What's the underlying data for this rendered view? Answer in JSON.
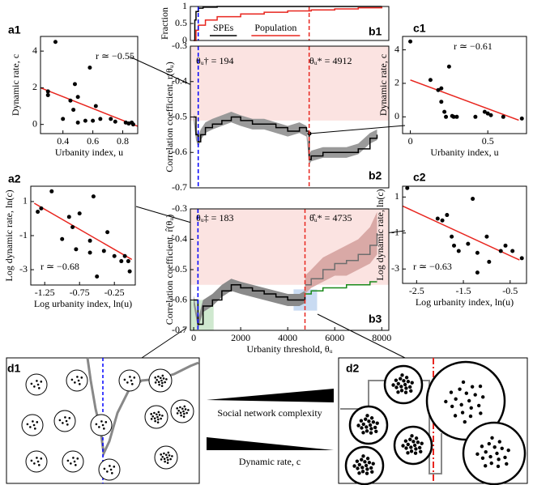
{
  "chart_data": [
    {
      "type": "scatter",
      "panel": "a1",
      "xlabel": "Urbanity index, u",
      "ylabel": "Dynamic rate, c",
      "xlim": [
        0.25,
        0.9
      ],
      "ylim": [
        -0.5,
        4.8
      ],
      "xticks": [
        0.4,
        0.6,
        0.8
      ],
      "yticks": [
        0,
        2,
        4
      ],
      "points": {
        "color": "#000000",
        "x": [
          0.3,
          0.3,
          0.35,
          0.4,
          0.45,
          0.47,
          0.48,
          0.5,
          0.5,
          0.55,
          0.58,
          0.6,
          0.62,
          0.65,
          0.72,
          0.75,
          0.82,
          0.84,
          0.86,
          0.87
        ],
        "values": [
          1.6,
          1.8,
          4.5,
          0.3,
          1.3,
          0.8,
          2.2,
          1.5,
          0.1,
          0.2,
          3.1,
          0.2,
          1.0,
          0.3,
          0.3,
          0.15,
          0.1,
          0.05,
          0.1,
          0.0
        ]
      },
      "fit": {
        "color": "#e8261f",
        "x": [
          0.25,
          0.9
        ],
        "values": [
          2.0,
          -0.1
        ]
      },
      "annotations": [
        "r ≃ −0.55"
      ]
    },
    {
      "type": "scatter",
      "panel": "a2",
      "xlabel": "Log urbanity index, ln(u)",
      "ylabel": "Log dynamic rate, ln(c)",
      "xlim": [
        -1.45,
        0.05
      ],
      "ylim": [
        -3.9,
        1.9
      ],
      "xticks": [
        -1.25,
        -0.75,
        -0.25
      ],
      "yticks": [
        1,
        -1,
        -3
      ],
      "points": {
        "color": "#000000",
        "x": [
          -1.35,
          -1.3,
          -1.15,
          -1.0,
          -0.9,
          -0.85,
          -0.8,
          -0.75,
          -0.6,
          -0.6,
          -0.55,
          -0.5,
          -0.4,
          -0.35,
          -0.25,
          -0.15,
          -0.1,
          -0.05,
          -0.03
        ],
        "values": [
          0.4,
          0.6,
          1.6,
          -1.2,
          0.1,
          -0.5,
          -1.8,
          0.3,
          -2.0,
          -1.3,
          1.3,
          -3.4,
          -1.9,
          -0.8,
          -2.2,
          -2.5,
          -2.2,
          -2.5,
          -3.1
        ]
      },
      "fit": {
        "color": "#e8261f",
        "x": [
          -1.4,
          0
        ],
        "values": [
          0.9,
          -2.4
        ]
      },
      "annotations": [
        "r ≃ −0.68"
      ]
    },
    {
      "type": "line",
      "panel": "b1",
      "ylabel": "Fraction",
      "xlim": [
        -140,
        8300
      ],
      "ylim": [
        0,
        1
      ],
      "yticks": [
        0,
        0.5,
        1
      ],
      "series": [
        {
          "name": "SPEs",
          "color": "#000000",
          "x": [
            0,
            50,
            100,
            200,
            400,
            1000,
            3000,
            8000
          ],
          "values": [
            0,
            0.6,
            0.85,
            0.95,
            0.98,
            1,
            1,
            1
          ]
        },
        {
          "name": "Population",
          "color": "#e8261f",
          "x": [
            0,
            100,
            200,
            500,
            1000,
            2000,
            3000,
            4000,
            5000,
            6000,
            7000,
            8000
          ],
          "values": [
            0,
            0.3,
            0.45,
            0.6,
            0.7,
            0.78,
            0.83,
            0.87,
            0.9,
            0.93,
            0.96,
            1
          ]
        }
      ],
      "vlines": [
        {
          "x": 194,
          "color": "#0000ff"
        },
        {
          "x": 4912,
          "color": "#e8261f"
        }
      ]
    },
    {
      "type": "line",
      "panel": "b2",
      "ylabel": "Correlation coefficient, r(θᵤ)",
      "xlim": [
        -140,
        8300
      ],
      "ylim": [
        -0.7,
        -0.3
      ],
      "yticks": [
        -0.3,
        -0.4,
        -0.5,
        -0.6,
        -0.7
      ],
      "regions": [
        {
          "ylim": [
            -0.3,
            -0.51
          ],
          "color": "#fbe3e1"
        }
      ],
      "series": [
        {
          "color": "#000000",
          "band_color": "#9a9a9a",
          "x": [
            0,
            100,
            194,
            300,
            500,
            800,
            1200,
            1600,
            2000,
            2500,
            3000,
            3500,
            4000,
            4500,
            4800,
            4912,
            5000,
            5500,
            6000,
            6500,
            7000,
            7500,
            7800
          ],
          "values": [
            -0.5,
            -0.55,
            -0.57,
            -0.55,
            -0.53,
            -0.52,
            -0.51,
            -0.5,
            -0.51,
            -0.52,
            -0.52,
            -0.53,
            -0.54,
            -0.53,
            -0.54,
            -0.62,
            -0.61,
            -0.6,
            -0.6,
            -0.6,
            -0.59,
            -0.56,
            -0.55
          ],
          "lower": [
            -0.51,
            -0.565,
            -0.585,
            -0.565,
            -0.545,
            -0.535,
            -0.525,
            -0.515,
            -0.525,
            -0.535,
            -0.535,
            -0.545,
            -0.555,
            -0.545,
            -0.555,
            -0.635,
            -0.625,
            -0.615,
            -0.615,
            -0.615,
            -0.605,
            -0.575,
            -0.565
          ],
          "upper": [
            -0.49,
            -0.535,
            -0.555,
            -0.535,
            -0.515,
            -0.505,
            -0.495,
            -0.485,
            -0.495,
            -0.505,
            -0.505,
            -0.515,
            -0.525,
            -0.515,
            -0.525,
            -0.605,
            -0.595,
            -0.585,
            -0.585,
            -0.585,
            -0.575,
            -0.545,
            -0.535
          ]
        }
      ],
      "vlines": [
        {
          "x": 194,
          "color": "#0000ff"
        },
        {
          "x": 4912,
          "color": "#e8261f"
        }
      ],
      "annotations": [
        "θᵤ† = 194",
        "θᵤ* = 4912"
      ]
    },
    {
      "type": "line",
      "panel": "b3",
      "ylabel": "Correlation coefficient, r̂(θᵤ)",
      "xlabel": "Urbanity threshold, θᵤ",
      "xlim": [
        -140,
        8300
      ],
      "ylim": [
        -0.7,
        -0.3
      ],
      "yticks": [
        -0.3,
        -0.4,
        -0.5,
        -0.6,
        -0.7
      ],
      "xticks": [
        0,
        2000,
        4000,
        6000,
        8000
      ],
      "regions": [
        {
          "ylim": [
            -0.3,
            -0.55
          ],
          "color": "#fbe3e1"
        },
        {
          "xlim": [
            -140,
            850
          ],
          "ylim": [
            -0.6,
            -0.7
          ],
          "color": "#cfe8cf"
        },
        {
          "xlim": [
            4250,
            5250
          ],
          "ylim": [
            -0.565,
            -0.635
          ],
          "color": "#c9dbf2"
        }
      ],
      "series": [
        {
          "color": "#000000",
          "band_color": "#8a8a8a",
          "x": [
            0,
            183,
            400,
            800,
            1200,
            1600,
            2000,
            2500,
            3000,
            3500,
            4000,
            4500,
            4735
          ],
          "values": [
            -0.6,
            -0.68,
            -0.62,
            -0.6,
            -0.57,
            -0.55,
            -0.56,
            -0.57,
            -0.58,
            -0.59,
            -0.6,
            -0.6,
            -0.59
          ],
          "lower": [
            -0.615,
            -0.695,
            -0.64,
            -0.62,
            -0.59,
            -0.57,
            -0.58,
            -0.59,
            -0.6,
            -0.61,
            -0.62,
            -0.62,
            -0.61
          ],
          "upper": [
            -0.585,
            -0.665,
            -0.6,
            -0.58,
            -0.55,
            -0.53,
            -0.54,
            -0.55,
            -0.56,
            -0.57,
            -0.58,
            -0.58,
            -0.57
          ]
        },
        {
          "color": "#6e6e6e",
          "band_color": "#d9a9a6",
          "x": [
            4735,
            5000,
            5500,
            6000,
            6500,
            7000,
            7500,
            7800
          ],
          "values": [
            -0.55,
            -0.53,
            -0.5,
            -0.48,
            -0.47,
            -0.45,
            -0.42,
            -0.38
          ],
          "lower": [
            -0.58,
            -0.56,
            -0.54,
            -0.52,
            -0.52,
            -0.5,
            -0.48,
            -0.45
          ],
          "upper": [
            -0.52,
            -0.5,
            -0.46,
            -0.44,
            -0.42,
            -0.4,
            -0.36,
            -0.31
          ]
        },
        {
          "color": "#1a8a1a",
          "x": [
            4735,
            5000,
            5500,
            6000,
            6500,
            7000,
            7500,
            7800
          ],
          "values": [
            -0.58,
            -0.57,
            -0.56,
            -0.56,
            -0.55,
            -0.55,
            -0.54,
            -0.54
          ]
        }
      ],
      "vlines": [
        {
          "x": 183,
          "color": "#0000ff"
        },
        {
          "x": 4735,
          "color": "#e8261f"
        }
      ],
      "annotations": [
        "θᵤ‡ = 183",
        "θ̂ᵤ* = 4735"
      ]
    },
    {
      "type": "scatter",
      "panel": "c1",
      "xlabel": "Urbanity index, u",
      "ylabel": "Dynamic rate, c",
      "xlim": [
        -0.05,
        0.75
      ],
      "ylim": [
        -1,
        4.8
      ],
      "xticks": [
        0,
        0.5
      ],
      "yticks": [
        0,
        2,
        4
      ],
      "points": {
        "color": "#000000",
        "x": [
          0.0,
          0.13,
          0.18,
          0.2,
          0.2,
          0.22,
          0.23,
          0.25,
          0.27,
          0.28,
          0.3,
          0.42,
          0.48,
          0.5,
          0.52,
          0.6,
          0.72
        ],
        "values": [
          4.5,
          2.2,
          1.6,
          1.7,
          0.9,
          0.3,
          0.0,
          3.0,
          0.05,
          0.0,
          0.0,
          0.0,
          0.3,
          0.2,
          0.1,
          0.0,
          -0.1
        ]
      },
      "fit": {
        "color": "#e8261f",
        "x": [
          0,
          0.7
        ],
        "values": [
          2.2,
          -0.2
        ]
      },
      "annotations": [
        "r ≃ −0.61"
      ]
    },
    {
      "type": "scatter",
      "panel": "c2",
      "xlabel": "Log urbanity index, ln(u)",
      "ylabel": "Log dynamic rate, ln(c)",
      "xlim": [
        -2.8,
        -0.15
      ],
      "ylim": [
        -3.8,
        1.6
      ],
      "xticks": [
        -2.5,
        -1.5,
        -0.5
      ],
      "yticks": [
        1,
        -1,
        -3
      ],
      "points": {
        "color": "#000000",
        "x": [
          -2.7,
          -2.05,
          -1.95,
          -1.85,
          -1.75,
          -1.7,
          -1.6,
          -1.4,
          -1.3,
          -1.2,
          -1.2,
          -1.0,
          -0.95,
          -0.7,
          -0.6,
          -0.45,
          -0.25
        ],
        "values": [
          1.5,
          -0.2,
          -0.3,
          0.0,
          -1.2,
          -1.7,
          -2.0,
          -1.6,
          0.9,
          -2.1,
          -3.2,
          -1.2,
          -2.6,
          -2.0,
          -1.7,
          -2.0,
          -2.4
        ]
      },
      "fit": {
        "color": "#e8261f",
        "x": [
          -2.8,
          -0.3
        ],
        "values": [
          0.5,
          -2.5
        ]
      },
      "annotations": [
        "r ≃ −0.63"
      ]
    }
  ],
  "diagram": {
    "d1": "d1",
    "d2": "d2",
    "arrows": [
      "Social network complexity",
      "Dynamic rate, c"
    ]
  }
}
